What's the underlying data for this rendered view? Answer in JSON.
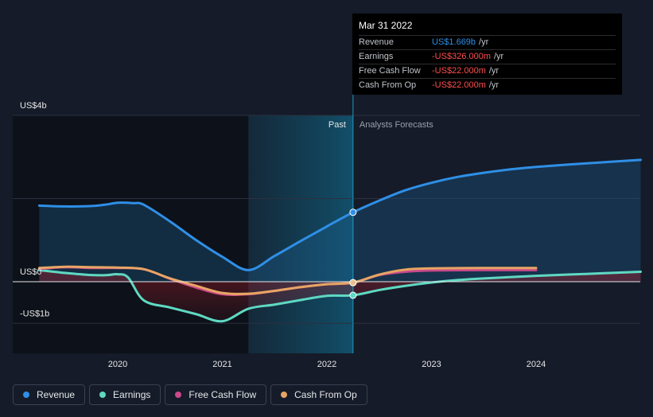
{
  "chart_data": {
    "type": "line",
    "x_labels": [
      "2020",
      "2021",
      "2022",
      "2023",
      "2024"
    ],
    "y_labels": [
      "US$4b",
      "US$0",
      "-US$1b"
    ],
    "y_label_values": [
      4,
      0,
      -1
    ],
    "ylim": [
      -1,
      4
    ],
    "regions": {
      "past_label": "Past",
      "forecast_label": "Analysts Forecasts",
      "divider_x": 2022.25
    },
    "series": [
      {
        "name": "Revenue",
        "color": "#2f8fe6",
        "fill": true,
        "points": [
          [
            2019.25,
            1.83
          ],
          [
            2019.5,
            1.81
          ],
          [
            2019.75,
            1.82
          ],
          [
            2019.9,
            1.86
          ],
          [
            2020.0,
            1.9
          ],
          [
            2020.15,
            1.89
          ],
          [
            2020.25,
            1.85
          ],
          [
            2020.5,
            1.45
          ],
          [
            2020.75,
            1.0
          ],
          [
            2021.0,
            0.6
          ],
          [
            2021.25,
            0.28
          ],
          [
            2021.5,
            0.62
          ],
          [
            2021.75,
            0.98
          ],
          [
            2022.0,
            1.33
          ],
          [
            2022.25,
            1.669
          ],
          [
            2022.5,
            1.95
          ],
          [
            2022.75,
            2.2
          ],
          [
            2023.0,
            2.38
          ],
          [
            2023.25,
            2.52
          ],
          [
            2023.5,
            2.62
          ],
          [
            2023.75,
            2.7
          ],
          [
            2024.0,
            2.76
          ],
          [
            2024.5,
            2.85
          ],
          [
            2025.0,
            2.93
          ]
        ]
      },
      {
        "name": "Earnings",
        "color": "#5fd8c2",
        "fill": false,
        "points": [
          [
            2019.25,
            0.28
          ],
          [
            2019.5,
            0.21
          ],
          [
            2019.75,
            0.16
          ],
          [
            2019.9,
            0.16
          ],
          [
            2020.0,
            0.18
          ],
          [
            2020.1,
            0.1
          ],
          [
            2020.25,
            -0.45
          ],
          [
            2020.5,
            -0.62
          ],
          [
            2020.75,
            -0.78
          ],
          [
            2021.0,
            -0.95
          ],
          [
            2021.25,
            -0.65
          ],
          [
            2021.5,
            -0.55
          ],
          [
            2021.75,
            -0.44
          ],
          [
            2022.0,
            -0.34
          ],
          [
            2022.25,
            -0.326
          ],
          [
            2022.5,
            -0.2
          ],
          [
            2022.75,
            -0.1
          ],
          [
            2023.0,
            -0.02
          ],
          [
            2023.25,
            0.04
          ],
          [
            2023.5,
            0.08
          ],
          [
            2024.0,
            0.14
          ],
          [
            2024.5,
            0.19
          ],
          [
            2025.0,
            0.24
          ]
        ]
      },
      {
        "name": "Free Cash Flow",
        "color": "#c9498a",
        "fill": false,
        "points": [
          [
            2019.25,
            0.31
          ],
          [
            2019.5,
            0.35
          ],
          [
            2019.75,
            0.33
          ],
          [
            2020.0,
            0.33
          ],
          [
            2020.25,
            0.3
          ],
          [
            2020.5,
            0.07
          ],
          [
            2020.75,
            -0.14
          ],
          [
            2021.0,
            -0.3
          ],
          [
            2021.25,
            -0.3
          ],
          [
            2021.5,
            -0.22
          ],
          [
            2021.75,
            -0.13
          ],
          [
            2022.0,
            -0.06
          ],
          [
            2022.25,
            -0.022
          ],
          [
            2022.5,
            0.16
          ],
          [
            2022.75,
            0.24
          ],
          [
            2023.0,
            0.27
          ],
          [
            2023.5,
            0.28
          ],
          [
            2024.0,
            0.28
          ]
        ]
      },
      {
        "name": "Cash From Op",
        "color": "#e8a564",
        "fill": false,
        "points": [
          [
            2019.25,
            0.33
          ],
          [
            2019.5,
            0.36
          ],
          [
            2019.75,
            0.35
          ],
          [
            2020.0,
            0.34
          ],
          [
            2020.25,
            0.3
          ],
          [
            2020.5,
            0.08
          ],
          [
            2020.75,
            -0.1
          ],
          [
            2021.0,
            -0.27
          ],
          [
            2021.25,
            -0.29
          ],
          [
            2021.5,
            -0.22
          ],
          [
            2021.75,
            -0.13
          ],
          [
            2022.0,
            -0.06
          ],
          [
            2022.25,
            -0.022
          ],
          [
            2022.5,
            0.17
          ],
          [
            2022.75,
            0.29
          ],
          [
            2023.0,
            0.32
          ],
          [
            2023.5,
            0.33
          ],
          [
            2024.0,
            0.33
          ]
        ]
      }
    ],
    "marker_x": 2022.25,
    "grid": true
  },
  "tooltip": {
    "date": "Mar 31 2022",
    "rows": [
      {
        "label": "Revenue",
        "value": "US$1.669b",
        "unit": "/yr",
        "color": "#2f8fe6"
      },
      {
        "label": "Earnings",
        "value": "-US$326.000m",
        "unit": "/yr",
        "color": "#ff4d4d"
      },
      {
        "label": "Free Cash Flow",
        "value": "-US$22.000m",
        "unit": "/yr",
        "color": "#ff4d4d"
      },
      {
        "label": "Cash From Op",
        "value": "-US$22.000m",
        "unit": "/yr",
        "color": "#ff4d4d"
      }
    ]
  },
  "legend": [
    {
      "label": "Revenue",
      "color": "#2f8fe6"
    },
    {
      "label": "Earnings",
      "color": "#5fd8c2"
    },
    {
      "label": "Free Cash Flow",
      "color": "#c9498a"
    },
    {
      "label": "Cash From Op",
      "color": "#e8a564"
    }
  ]
}
